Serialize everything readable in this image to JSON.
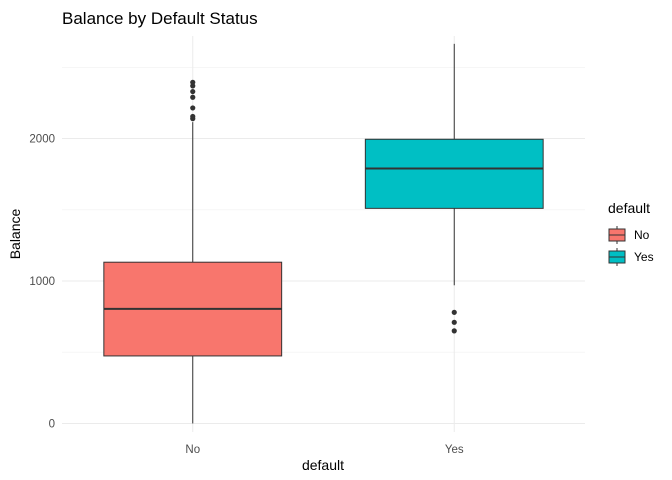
{
  "chart_data": {
    "type": "boxplot",
    "title": "Balance by Default Status",
    "xlabel": "default",
    "ylabel": "Balance",
    "categories": [
      "No",
      "Yes"
    ],
    "ylim": [
      -60,
      2720
    ],
    "yticks": [
      0,
      1000,
      2000
    ],
    "grid": true,
    "legend": {
      "title": "default",
      "position": "right",
      "entries": [
        {
          "label": "No",
          "color": "#F8766D"
        },
        {
          "label": "Yes",
          "color": "#00BFC4"
        }
      ]
    },
    "boxes": [
      {
        "category": "No",
        "color": "#F8766D",
        "min": 0,
        "q1": 474,
        "median": 804,
        "q3": 1132,
        "max": 2115,
        "outliers": [
          2140,
          2155,
          2215,
          2290,
          2330,
          2370,
          2395
        ]
      },
      {
        "category": "Yes",
        "color": "#00BFC4",
        "min": 970,
        "q1": 1510,
        "median": 1790,
        "q3": 1995,
        "max": 2665,
        "outliers": [
          650,
          710,
          780
        ]
      }
    ]
  }
}
